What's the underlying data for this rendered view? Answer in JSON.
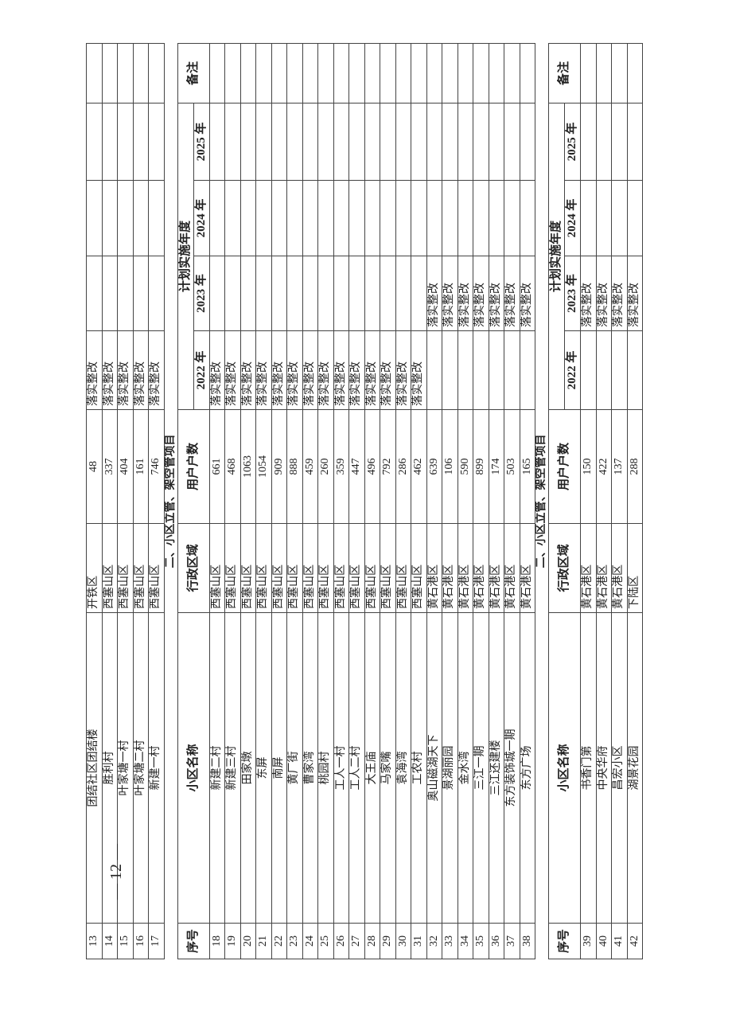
{
  "headers": {
    "seq": "序号",
    "name": "小区名称",
    "district": "行政区域",
    "households": "用户户数",
    "plan_year": "计划实施年度",
    "years": [
      "2022 年",
      "2023 年",
      "2024 年",
      "2025 年"
    ],
    "remark": "备注"
  },
  "section_title": "二、小区立管、架空管项目",
  "status_text": "落实整改",
  "page_number": "— 12 —",
  "block1": [
    {
      "seq": "13",
      "name": "团结社区团结楼",
      "district": "开铁区",
      "households": "48",
      "y2022": "落实整改",
      "y2023": "",
      "y2024": "",
      "y2025": "",
      "remark": ""
    },
    {
      "seq": "14",
      "name": "胜利村",
      "district": "西塞山区",
      "households": "337",
      "y2022": "落实整改",
      "y2023": "",
      "y2024": "",
      "y2025": "",
      "remark": ""
    },
    {
      "seq": "15",
      "name": "叶家塘一村",
      "district": "西塞山区",
      "households": "404",
      "y2022": "落实整改",
      "y2023": "",
      "y2024": "",
      "y2025": "",
      "remark": ""
    },
    {
      "seq": "16",
      "name": "叶家塘二村",
      "district": "西塞山区",
      "households": "161",
      "y2022": "落实整改",
      "y2023": "",
      "y2024": "",
      "y2025": "",
      "remark": ""
    },
    {
      "seq": "17",
      "name": "新建一村",
      "district": "西塞山区",
      "households": "746",
      "y2022": "落实整改",
      "y2023": "",
      "y2024": "",
      "y2025": "",
      "remark": ""
    }
  ],
  "block2": [
    {
      "seq": "18",
      "name": "新建二村",
      "district": "西塞山区",
      "households": "661",
      "y2022": "落实整改",
      "y2023": "",
      "y2024": "",
      "y2025": "",
      "remark": ""
    },
    {
      "seq": "19",
      "name": "新建三村",
      "district": "西塞山区",
      "households": "468",
      "y2022": "落实整改",
      "y2023": "",
      "y2024": "",
      "y2025": "",
      "remark": ""
    },
    {
      "seq": "20",
      "name": "田家墩",
      "district": "西塞山区",
      "households": "1063",
      "y2022": "落实整改",
      "y2023": "",
      "y2024": "",
      "y2025": "",
      "remark": ""
    },
    {
      "seq": "21",
      "name": "东屏",
      "district": "西塞山区",
      "households": "1054",
      "y2022": "落实整改",
      "y2023": "",
      "y2024": "",
      "y2025": "",
      "remark": ""
    },
    {
      "seq": "22",
      "name": "南屏",
      "district": "西塞山区",
      "households": "909",
      "y2022": "落实整改",
      "y2023": "",
      "y2024": "",
      "y2025": "",
      "remark": ""
    },
    {
      "seq": "23",
      "name": "黄厂街",
      "district": "西塞山区",
      "households": "888",
      "y2022": "落实整改",
      "y2023": "",
      "y2024": "",
      "y2025": "",
      "remark": ""
    },
    {
      "seq": "24",
      "name": "曹家湾",
      "district": "西塞山区",
      "households": "459",
      "y2022": "落实整改",
      "y2023": "",
      "y2024": "",
      "y2025": "",
      "remark": ""
    },
    {
      "seq": "25",
      "name": "桃园村",
      "district": "西塞山区",
      "households": "260",
      "y2022": "落实整改",
      "y2023": "",
      "y2024": "",
      "y2025": "",
      "remark": ""
    },
    {
      "seq": "26",
      "name": "工人一村",
      "district": "西塞山区",
      "households": "359",
      "y2022": "落实整改",
      "y2023": "",
      "y2024": "",
      "y2025": "",
      "remark": ""
    },
    {
      "seq": "27",
      "name": "工人二村",
      "district": "西塞山区",
      "households": "447",
      "y2022": "落实整改",
      "y2023": "",
      "y2024": "",
      "y2025": "",
      "remark": ""
    },
    {
      "seq": "28",
      "name": "大王庙",
      "district": "西塞山区",
      "households": "496",
      "y2022": "落实整改",
      "y2023": "",
      "y2024": "",
      "y2025": "",
      "remark": ""
    },
    {
      "seq": "29",
      "name": "马家嘴",
      "district": "西塞山区",
      "households": "792",
      "y2022": "落实整改",
      "y2023": "",
      "y2024": "",
      "y2025": "",
      "remark": ""
    },
    {
      "seq": "30",
      "name": "袁海湾",
      "district": "西塞山区",
      "households": "286",
      "y2022": "落实整改",
      "y2023": "",
      "y2024": "",
      "y2025": "",
      "remark": ""
    },
    {
      "seq": "31",
      "name": "工农村",
      "district": "西塞山区",
      "households": "462",
      "y2022": "落实整改",
      "y2023": "",
      "y2024": "",
      "y2025": "",
      "remark": ""
    },
    {
      "seq": "32",
      "name": "奥山磁湖天下",
      "district": "黄石港区",
      "households": "639",
      "y2022": "",
      "y2023": "落实整改",
      "y2024": "",
      "y2025": "",
      "remark": ""
    },
    {
      "seq": "33",
      "name": "景湖丽园",
      "district": "黄石港区",
      "households": "106",
      "y2022": "",
      "y2023": "落实整改",
      "y2024": "",
      "y2025": "",
      "remark": ""
    },
    {
      "seq": "34",
      "name": "金水湾",
      "district": "黄石港区",
      "households": "590",
      "y2022": "",
      "y2023": "落实整改",
      "y2024": "",
      "y2025": "",
      "remark": ""
    },
    {
      "seq": "35",
      "name": "三江一期",
      "district": "黄石港区",
      "households": "899",
      "y2022": "",
      "y2023": "落实整改",
      "y2024": "",
      "y2025": "",
      "remark": ""
    },
    {
      "seq": "36",
      "name": "三江还建楼",
      "district": "黄石港区",
      "households": "174",
      "y2022": "",
      "y2023": "落实整改",
      "y2024": "",
      "y2025": "",
      "remark": ""
    },
    {
      "seq": "37",
      "name": "东方装饰城一期",
      "district": "黄石港区",
      "households": "503",
      "y2022": "",
      "y2023": "落实整改",
      "y2024": "",
      "y2025": "",
      "remark": ""
    },
    {
      "seq": "38",
      "name": "东方广场",
      "district": "黄石港区",
      "households": "165",
      "y2022": "",
      "y2023": "落实整改",
      "y2024": "",
      "y2025": "",
      "remark": ""
    }
  ],
  "block3": [
    {
      "seq": "39",
      "name": "书香门第",
      "district": "黄石港区",
      "households": "150",
      "y2022": "",
      "y2023": "落实整改",
      "y2024": "",
      "y2025": "",
      "remark": ""
    },
    {
      "seq": "40",
      "name": "中央华府",
      "district": "黄石港区",
      "households": "422",
      "y2022": "",
      "y2023": "落实整改",
      "y2024": "",
      "y2025": "",
      "remark": ""
    },
    {
      "seq": "41",
      "name": "昌宏小区",
      "district": "黄石港区",
      "households": "137",
      "y2022": "",
      "y2023": "落实整改",
      "y2024": "",
      "y2025": "",
      "remark": ""
    },
    {
      "seq": "42",
      "name": "湖景花园",
      "district": "下陆区",
      "households": "288",
      "y2022": "",
      "y2023": "落实整改",
      "y2024": "",
      "y2025": "",
      "remark": ""
    }
  ]
}
